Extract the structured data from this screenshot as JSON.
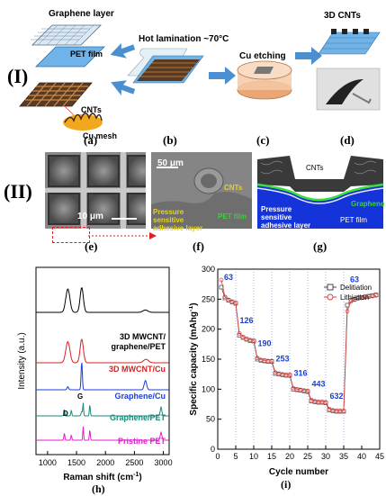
{
  "section_I": {
    "roman": "(I)",
    "labels": {
      "graphene_layer": "Graphene layer",
      "pet_film": "PET film",
      "cnts": "CNTs",
      "cu_mesh": "Cu mesh",
      "hot_lamination": "Hot lamination ~70°C",
      "cu_etching": "Cu etching",
      "cnts_3d": "3D CNTs"
    },
    "panels": [
      "(a)",
      "(b)",
      "(c)",
      "(d)"
    ]
  },
  "section_II": {
    "roman": "(II)",
    "scale_e": "10 μm",
    "scale_f": "50 μm",
    "f_labels": {
      "cnts": "CNTs",
      "psa": "Pressure sensitive adhesive layer",
      "pet": "PET film"
    },
    "g_labels": {
      "cnts": "CNTs",
      "graphene": "Graphene",
      "psa": "Pressure sensitive adhesive layer",
      "pet": "PET film"
    },
    "panels": [
      "(e)",
      "(f)",
      "(g)"
    ]
  },
  "raman": {
    "panel": "(h)",
    "xlabel": "Raman shift (cm",
    "xlabel_sup": "-1",
    "xlabel_end": ")",
    "ylabel": "Intensity (a.u.)",
    "ticks": [
      "1000",
      "1500",
      "2000",
      "2500",
      "3000"
    ],
    "peak_G": "G",
    "peak_D": "D",
    "series": [
      {
        "name": "3D MWCNT/",
        "name2": "graphene/PET",
        "color": "#000000"
      },
      {
        "name": "3D MWCNT/Cu",
        "color": "#d62020"
      },
      {
        "name": "Graphene/Cu",
        "color": "#1a3fd6"
      },
      {
        "name": "Graphene/PET",
        "color": "#1a8a7a"
      },
      {
        "name": "Pristine PET",
        "color": "#e020d0"
      }
    ]
  },
  "capacity": {
    "panel": "(i)",
    "xlabel": "Cycle number",
    "ylabel": "Specific capacity (mAhg",
    "ylabel_sup": "-1",
    "ylabel_end": ")",
    "xticks": [
      "0",
      "5",
      "10",
      "15",
      "20",
      "25",
      "30",
      "35",
      "40",
      "45"
    ],
    "yticks": [
      "0",
      "50",
      "100",
      "150",
      "200",
      "250",
      "300"
    ],
    "legend": [
      "Delitiation",
      "Lithiation"
    ],
    "rate_labels": [
      "63",
      "126",
      "190",
      "253",
      "316",
      "443",
      "632",
      "63"
    ]
  },
  "chart_data": [
    {
      "type": "line",
      "title": "",
      "xlabel": "Raman shift (cm-1)",
      "ylabel": "Intensity (a.u.)",
      "xlim": [
        800,
        3100
      ],
      "series": [
        {
          "name": "3D MWCNT/graphene/PET"
        },
        {
          "name": "3D MWCNT/Cu"
        },
        {
          "name": "Graphene/Cu"
        },
        {
          "name": "Graphene/PET"
        },
        {
          "name": "Pristine PET"
        }
      ]
    },
    {
      "type": "line",
      "title": "",
      "xlabel": "Cycle number",
      "ylabel": "Specific capacity (mAhg-1)",
      "xlim": [
        0,
        45
      ],
      "ylim": [
        0,
        300
      ],
      "x": [
        1,
        2,
        3,
        4,
        5,
        6,
        7,
        8,
        9,
        10,
        11,
        12,
        13,
        14,
        15,
        16,
        17,
        18,
        19,
        20,
        21,
        22,
        23,
        24,
        25,
        26,
        27,
        28,
        29,
        30,
        31,
        32,
        33,
        34,
        35,
        36,
        37,
        38,
        39,
        40,
        41,
        42,
        43,
        44
      ],
      "series": [
        {
          "name": "Delitiation",
          "values": [
            270,
            252,
            248,
            245,
            243,
            190,
            186,
            183,
            181,
            180,
            150,
            148,
            147,
            146,
            146,
            126,
            125,
            124,
            123,
            123,
            100,
            99,
            98,
            97,
            96,
            80,
            79,
            78,
            78,
            77,
            65,
            64,
            63,
            63,
            63,
            240,
            248,
            250,
            252,
            253,
            254,
            255,
            256,
            257
          ]
        },
        {
          "name": "Lithiation",
          "values": [
            282,
            254,
            249,
            246,
            244,
            193,
            187,
            184,
            182,
            181,
            152,
            149,
            148,
            147,
            147,
            128,
            126,
            125,
            124,
            124,
            102,
            100,
            99,
            98,
            97,
            82,
            80,
            79,
            79,
            78,
            67,
            65,
            64,
            64,
            64,
            230,
            246,
            249,
            251,
            252,
            253,
            254,
            255,
            256
          ]
        }
      ],
      "annotations": [
        "63",
        "126",
        "190",
        "253",
        "316",
        "443",
        "632",
        "63"
      ]
    }
  ]
}
